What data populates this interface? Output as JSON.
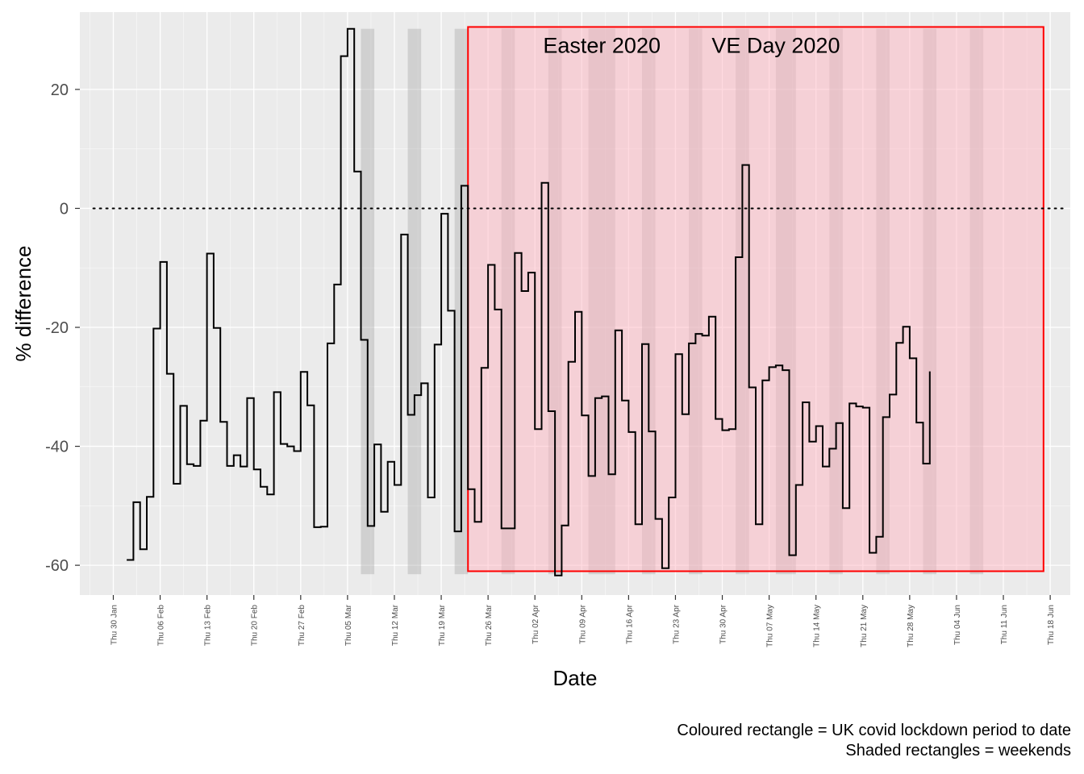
{
  "chart_data": {
    "type": "line",
    "step": true,
    "xlabel": "Date",
    "ylabel": "% difference",
    "xlim": [
      "2020-01-25",
      "2020-06-21"
    ],
    "ylim": [
      -65,
      33
    ],
    "y_ticks": [
      -60,
      -40,
      -20,
      0,
      20
    ],
    "y_tick_labels": [
      "-60",
      "-40",
      "-20",
      "0",
      "20"
    ],
    "x_ticks": [
      "2020-01-30",
      "2020-02-06",
      "2020-02-13",
      "2020-02-20",
      "2020-02-27",
      "2020-03-05",
      "2020-03-12",
      "2020-03-19",
      "2020-03-26",
      "2020-04-02",
      "2020-04-09",
      "2020-04-16",
      "2020-04-23",
      "2020-04-30",
      "2020-05-07",
      "2020-05-14",
      "2020-05-21",
      "2020-05-28",
      "2020-06-04",
      "2020-06-11",
      "2020-06-18"
    ],
    "x_tick_labels": [
      "Thu 30 Jan",
      "Thu 06 Feb",
      "Thu 13 Feb",
      "Thu 20 Feb",
      "Thu 27 Feb",
      "Thu 05 Mar",
      "Thu 12 Mar",
      "Thu 19 Mar",
      "Thu 26 Mar",
      "Thu 02 Apr",
      "Thu 09 Apr",
      "Thu 16 Apr",
      "Thu 23 Apr",
      "Thu 30 Apr",
      "Thu 07 May",
      "Thu 14 May",
      "Thu 21 May",
      "Thu 28 May",
      "Thu 04 Jun",
      "Thu 11 Jun",
      "Thu 18 Jun"
    ],
    "reference_line_y": 0,
    "grid": true,
    "series_dates": [
      "2020-02-01",
      "2020-02-02",
      "2020-02-03",
      "2020-02-04",
      "2020-02-05",
      "2020-02-06",
      "2020-02-07",
      "2020-02-08",
      "2020-02-09",
      "2020-02-10",
      "2020-02-11",
      "2020-02-12",
      "2020-02-13",
      "2020-02-14",
      "2020-02-15",
      "2020-02-16",
      "2020-02-17",
      "2020-02-18",
      "2020-02-19",
      "2020-02-20",
      "2020-02-21",
      "2020-02-22",
      "2020-02-23",
      "2020-02-24",
      "2020-02-25",
      "2020-02-26",
      "2020-02-27",
      "2020-02-28",
      "2020-02-29",
      "2020-03-01",
      "2020-03-02",
      "2020-03-03",
      "2020-03-04",
      "2020-03-05",
      "2020-03-06",
      "2020-03-07",
      "2020-03-08",
      "2020-03-09",
      "2020-03-10",
      "2020-03-11",
      "2020-03-12",
      "2020-03-13",
      "2020-03-14",
      "2020-03-15",
      "2020-03-16",
      "2020-03-17",
      "2020-03-18",
      "2020-03-19",
      "2020-03-20",
      "2020-03-21",
      "2020-03-22",
      "2020-03-23",
      "2020-03-24",
      "2020-03-25",
      "2020-03-26",
      "2020-03-27",
      "2020-03-28",
      "2020-03-29",
      "2020-03-30",
      "2020-03-31",
      "2020-04-01",
      "2020-04-02",
      "2020-04-03",
      "2020-04-04",
      "2020-04-05",
      "2020-04-06",
      "2020-04-07",
      "2020-04-08",
      "2020-04-09",
      "2020-04-10",
      "2020-04-11",
      "2020-04-12",
      "2020-04-13",
      "2020-04-14",
      "2020-04-15",
      "2020-04-16",
      "2020-04-17",
      "2020-04-18",
      "2020-04-19",
      "2020-04-20",
      "2020-04-21",
      "2020-04-22",
      "2020-04-23",
      "2020-04-24",
      "2020-04-25",
      "2020-04-26",
      "2020-04-27",
      "2020-04-28",
      "2020-04-29",
      "2020-04-30",
      "2020-05-01",
      "2020-05-02",
      "2020-05-03",
      "2020-05-04",
      "2020-05-05",
      "2020-05-06",
      "2020-05-07",
      "2020-05-08",
      "2020-05-09",
      "2020-05-10",
      "2020-05-11",
      "2020-05-12",
      "2020-05-13",
      "2020-05-14",
      "2020-05-15",
      "2020-05-16",
      "2020-05-17",
      "2020-05-18",
      "2020-05-19",
      "2020-05-20",
      "2020-05-21",
      "2020-05-22",
      "2020-05-23",
      "2020-05-24",
      "2020-05-25",
      "2020-05-26",
      "2020-05-27",
      "2020-05-28",
      "2020-05-29",
      "2020-05-30"
    ],
    "values": [
      -59.1,
      -49.4,
      -57.3,
      -48.5,
      -20.2,
      -9.0,
      -27.8,
      -46.3,
      -33.2,
      -43.0,
      -43.3,
      -35.7,
      -7.6,
      -20.1,
      -35.9,
      -43.3,
      -41.5,
      -43.4,
      -31.9,
      -43.9,
      -46.8,
      -48.1,
      -30.9,
      -39.6,
      -40.0,
      -40.8,
      -27.5,
      -33.1,
      -53.6,
      -53.5,
      -22.7,
      -12.8,
      25.6,
      30.2,
      6.2,
      -22.1,
      -53.4,
      -39.7,
      -51.0,
      -42.6,
      -46.5,
      -4.4,
      -34.7,
      -31.4,
      -29.4,
      -48.6,
      -22.9,
      -0.9,
      -17.2,
      -54.3,
      3.8,
      -47.2,
      -52.7,
      -26.8,
      -9.5,
      -17.0,
      -53.8,
      -53.8,
      -7.5,
      -13.9,
      -10.8,
      -37.1,
      4.3,
      -34.1,
      -61.7,
      -53.3,
      -25.8,
      -17.4,
      -34.8,
      -45.0,
      -31.9,
      -31.6,
      -44.7,
      -20.5,
      -32.3,
      -37.6,
      -53.1,
      -22.8,
      -37.5,
      -52.2,
      -60.5,
      -48.6,
      -24.5,
      -34.6,
      -22.7,
      -21.1,
      -21.4,
      -18.2,
      -35.4,
      -37.3,
      -37.1,
      -8.2,
      7.3,
      -30.1,
      -53.1,
      -28.9,
      -26.7,
      -26.4,
      -27.2,
      -58.3,
      -46.5,
      -32.6,
      -39.2,
      -36.6,
      -43.4,
      -40.4,
      -36.1,
      -50.4,
      -32.8,
      -33.3,
      -33.5,
      -57.9,
      -55.2,
      -35.1,
      -31.3,
      -22.6,
      -19.9,
      -25.2,
      -36.0,
      -42.9
    ],
    "last_value": -27.4,
    "weekend_shading": {
      "starts": [
        "2020-03-07",
        "2020-03-14",
        "2020-03-21",
        "2020-03-28",
        "2020-04-04",
        "2020-04-10",
        "2020-04-18",
        "2020-04-25",
        "2020-05-02",
        "2020-05-08",
        "2020-05-16",
        "2020-05-23",
        "2020-05-30",
        "2020-06-06"
      ],
      "ends": [
        "2020-03-09",
        "2020-03-16",
        "2020-03-23",
        "2020-03-30",
        "2020-04-06",
        "2020-04-14",
        "2020-04-20",
        "2020-04-27",
        "2020-05-04",
        "2020-05-11",
        "2020-05-18",
        "2020-05-25",
        "2020-06-01",
        "2020-06-08"
      ],
      "y_range": [
        -61.5,
        30.2
      ]
    },
    "lockdown_rectangle": {
      "start": "2020-03-23",
      "end": "2020-06-17",
      "y_range": [
        -61,
        30.5
      ],
      "fill": "#ffb6c1",
      "stroke": "#ff0000"
    },
    "annotations": [
      {
        "text": "Easter 2020",
        "x": "2020-04-12",
        "y": 27.5
      },
      {
        "text": "VE Day 2020",
        "x": "2020-05-08",
        "y": 27.5
      }
    ],
    "caption": [
      "Coloured rectangle = UK covid lockdown period to date",
      "Shaded rectangles = weekends"
    ]
  },
  "colors": {
    "panel": "#ebebeb",
    "grid_major": "#ffffff",
    "line": "#000000",
    "weekend": "#a6a6a6",
    "lockdown_fill": "#ffb6c1",
    "lockdown_stroke": "#ff0000"
  }
}
